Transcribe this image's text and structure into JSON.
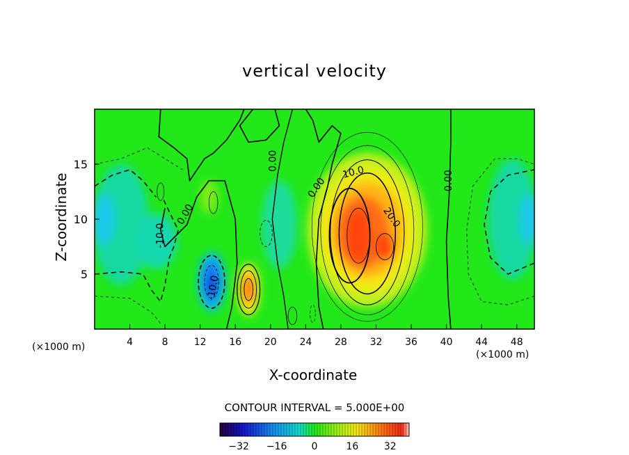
{
  "chart_data": {
    "type": "contour",
    "title": "vertical velocity",
    "xlabel": "X-coordinate",
    "ylabel": "Z-coordinate",
    "x_unit": "(×1000 m)",
    "xlim": [
      0,
      50
    ],
    "ylim": [
      0,
      20
    ],
    "x_ticks": [
      4,
      8,
      12,
      16,
      20,
      24,
      28,
      32,
      36,
      40,
      44,
      48
    ],
    "y_ticks": [
      5,
      10,
      15
    ],
    "contour_interval_text": "CONTOUR INTERVAL = 5.000E+00",
    "contour_interval": 5.0,
    "contour_labels": [
      "0.00",
      "0.00",
      "0.00",
      "0.00",
      "10.0",
      "20.0",
      "-10.0",
      "-10.0"
    ],
    "colorbar": {
      "min": -40,
      "max": 40,
      "ticks": [
        -32,
        -16,
        0,
        16,
        32
      ]
    },
    "features": [
      {
        "kind": "updraft",
        "x": 31,
        "z": 8.5,
        "peak": 25
      },
      {
        "kind": "updraft",
        "x": 17.5,
        "z": 3.6,
        "peak": 25
      },
      {
        "kind": "downdraft",
        "x": 13.3,
        "z": 4.2,
        "peak": -25
      },
      {
        "kind": "downdraft",
        "x": 0.5,
        "z": 10,
        "peak": -15
      },
      {
        "kind": "downdraft",
        "x": 49.5,
        "z": 10,
        "peak": -15
      }
    ],
    "grid": false,
    "legend": "colorbar bottom"
  }
}
